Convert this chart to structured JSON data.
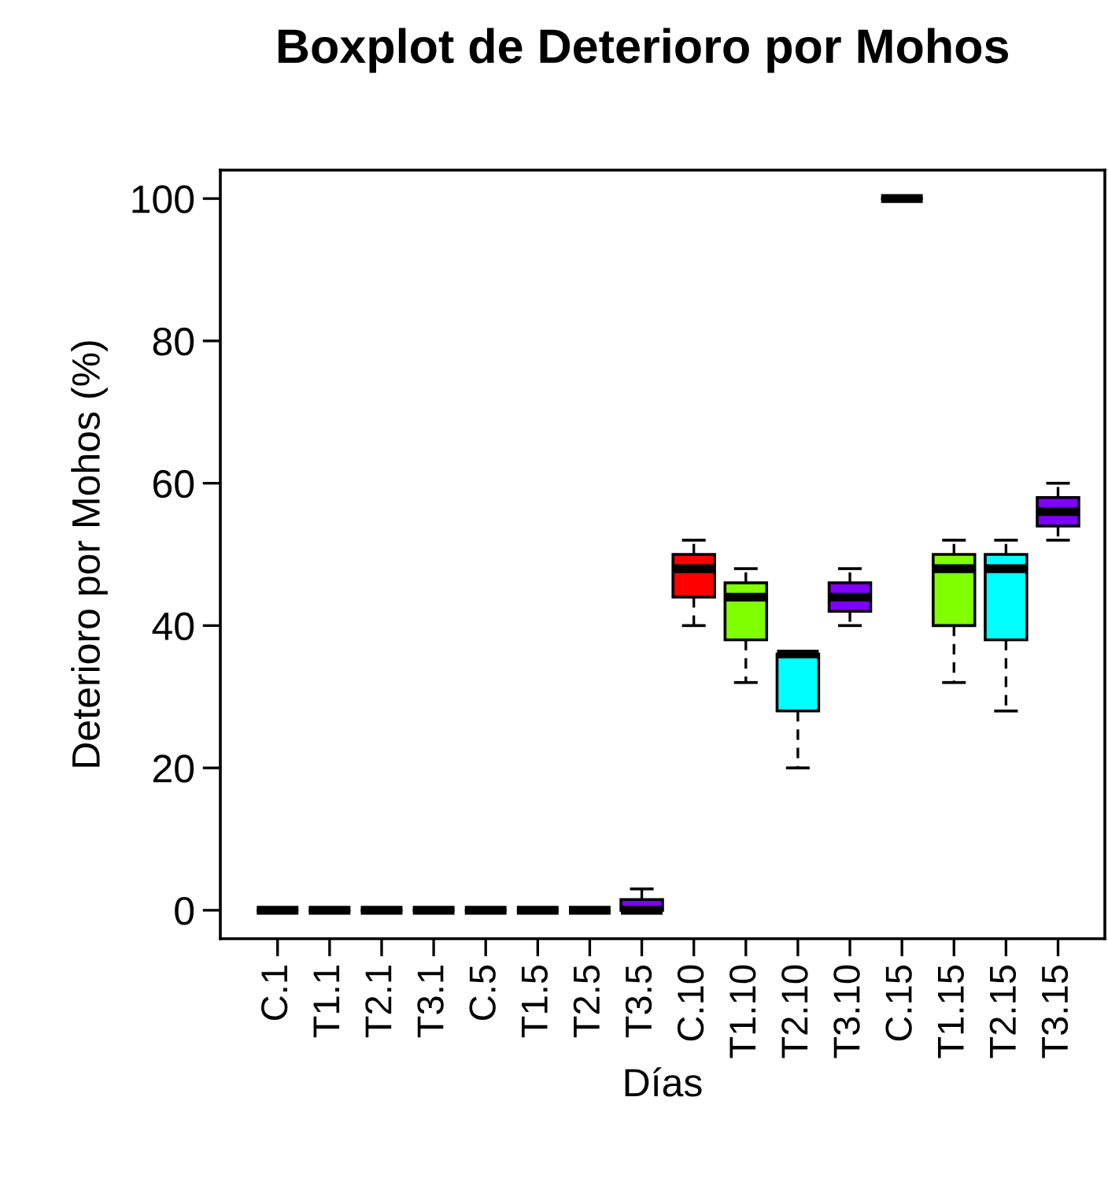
{
  "chart_data": {
    "type": "box",
    "title": "Boxplot de Deterioro por Mohos",
    "xlabel": "Días",
    "ylabel": "Deterioro por Mohos (%)",
    "categories": [
      "C.1",
      "T1.1",
      "T2.1",
      "T3.1",
      "C.5",
      "T1.5",
      "T2.5",
      "T3.5",
      "C.10",
      "T1.10",
      "T2.10",
      "T3.10",
      "C.15",
      "T1.15",
      "T2.15",
      "T3.15"
    ],
    "colors": [
      null,
      null,
      null,
      null,
      null,
      null,
      null,
      "#8000ff",
      "#ff0000",
      "#80ff00",
      "#00ffff",
      "#8000ff",
      null,
      "#80ff00",
      "#00ffff",
      "#8000ff"
    ],
    "boxes": [
      {
        "low": 0,
        "q1": 0,
        "median": 0,
        "q3": 0,
        "high": 0
      },
      {
        "low": 0,
        "q1": 0,
        "median": 0,
        "q3": 0,
        "high": 0
      },
      {
        "low": 0,
        "q1": 0,
        "median": 0,
        "q3": 0,
        "high": 0
      },
      {
        "low": 0,
        "q1": 0,
        "median": 0,
        "q3": 0,
        "high": 0
      },
      {
        "low": 0,
        "q1": 0,
        "median": 0,
        "q3": 0,
        "high": 0
      },
      {
        "low": 0,
        "q1": 0,
        "median": 0,
        "q3": 0,
        "high": 0
      },
      {
        "low": 0,
        "q1": 0,
        "median": 0,
        "q3": 0,
        "high": 0
      },
      {
        "low": 0,
        "q1": 0,
        "median": 0,
        "q3": 1.5,
        "high": 3
      },
      {
        "low": 40,
        "q1": 44,
        "median": 48,
        "q3": 50,
        "high": 52
      },
      {
        "low": 32,
        "q1": 38,
        "median": 44,
        "q3": 46,
        "high": 48
      },
      {
        "low": 20,
        "q1": 28,
        "median": 36,
        "q3": 36,
        "high": 36
      },
      {
        "low": 40,
        "q1": 42,
        "median": 44,
        "q3": 46,
        "high": 48
      },
      {
        "low": 100,
        "q1": 100,
        "median": 100,
        "q3": 100,
        "high": 100
      },
      {
        "low": 32,
        "q1": 40,
        "median": 48,
        "q3": 50,
        "high": 52
      },
      {
        "low": 28,
        "q1": 38,
        "median": 48,
        "q3": 50,
        "high": 52
      },
      {
        "low": 52,
        "q1": 54,
        "median": 56,
        "q3": 58,
        "high": 60
      }
    ],
    "ylim": [
      -4,
      104
    ],
    "yticks": [
      0,
      20,
      40,
      60,
      80,
      100
    ],
    "grid": false
  }
}
